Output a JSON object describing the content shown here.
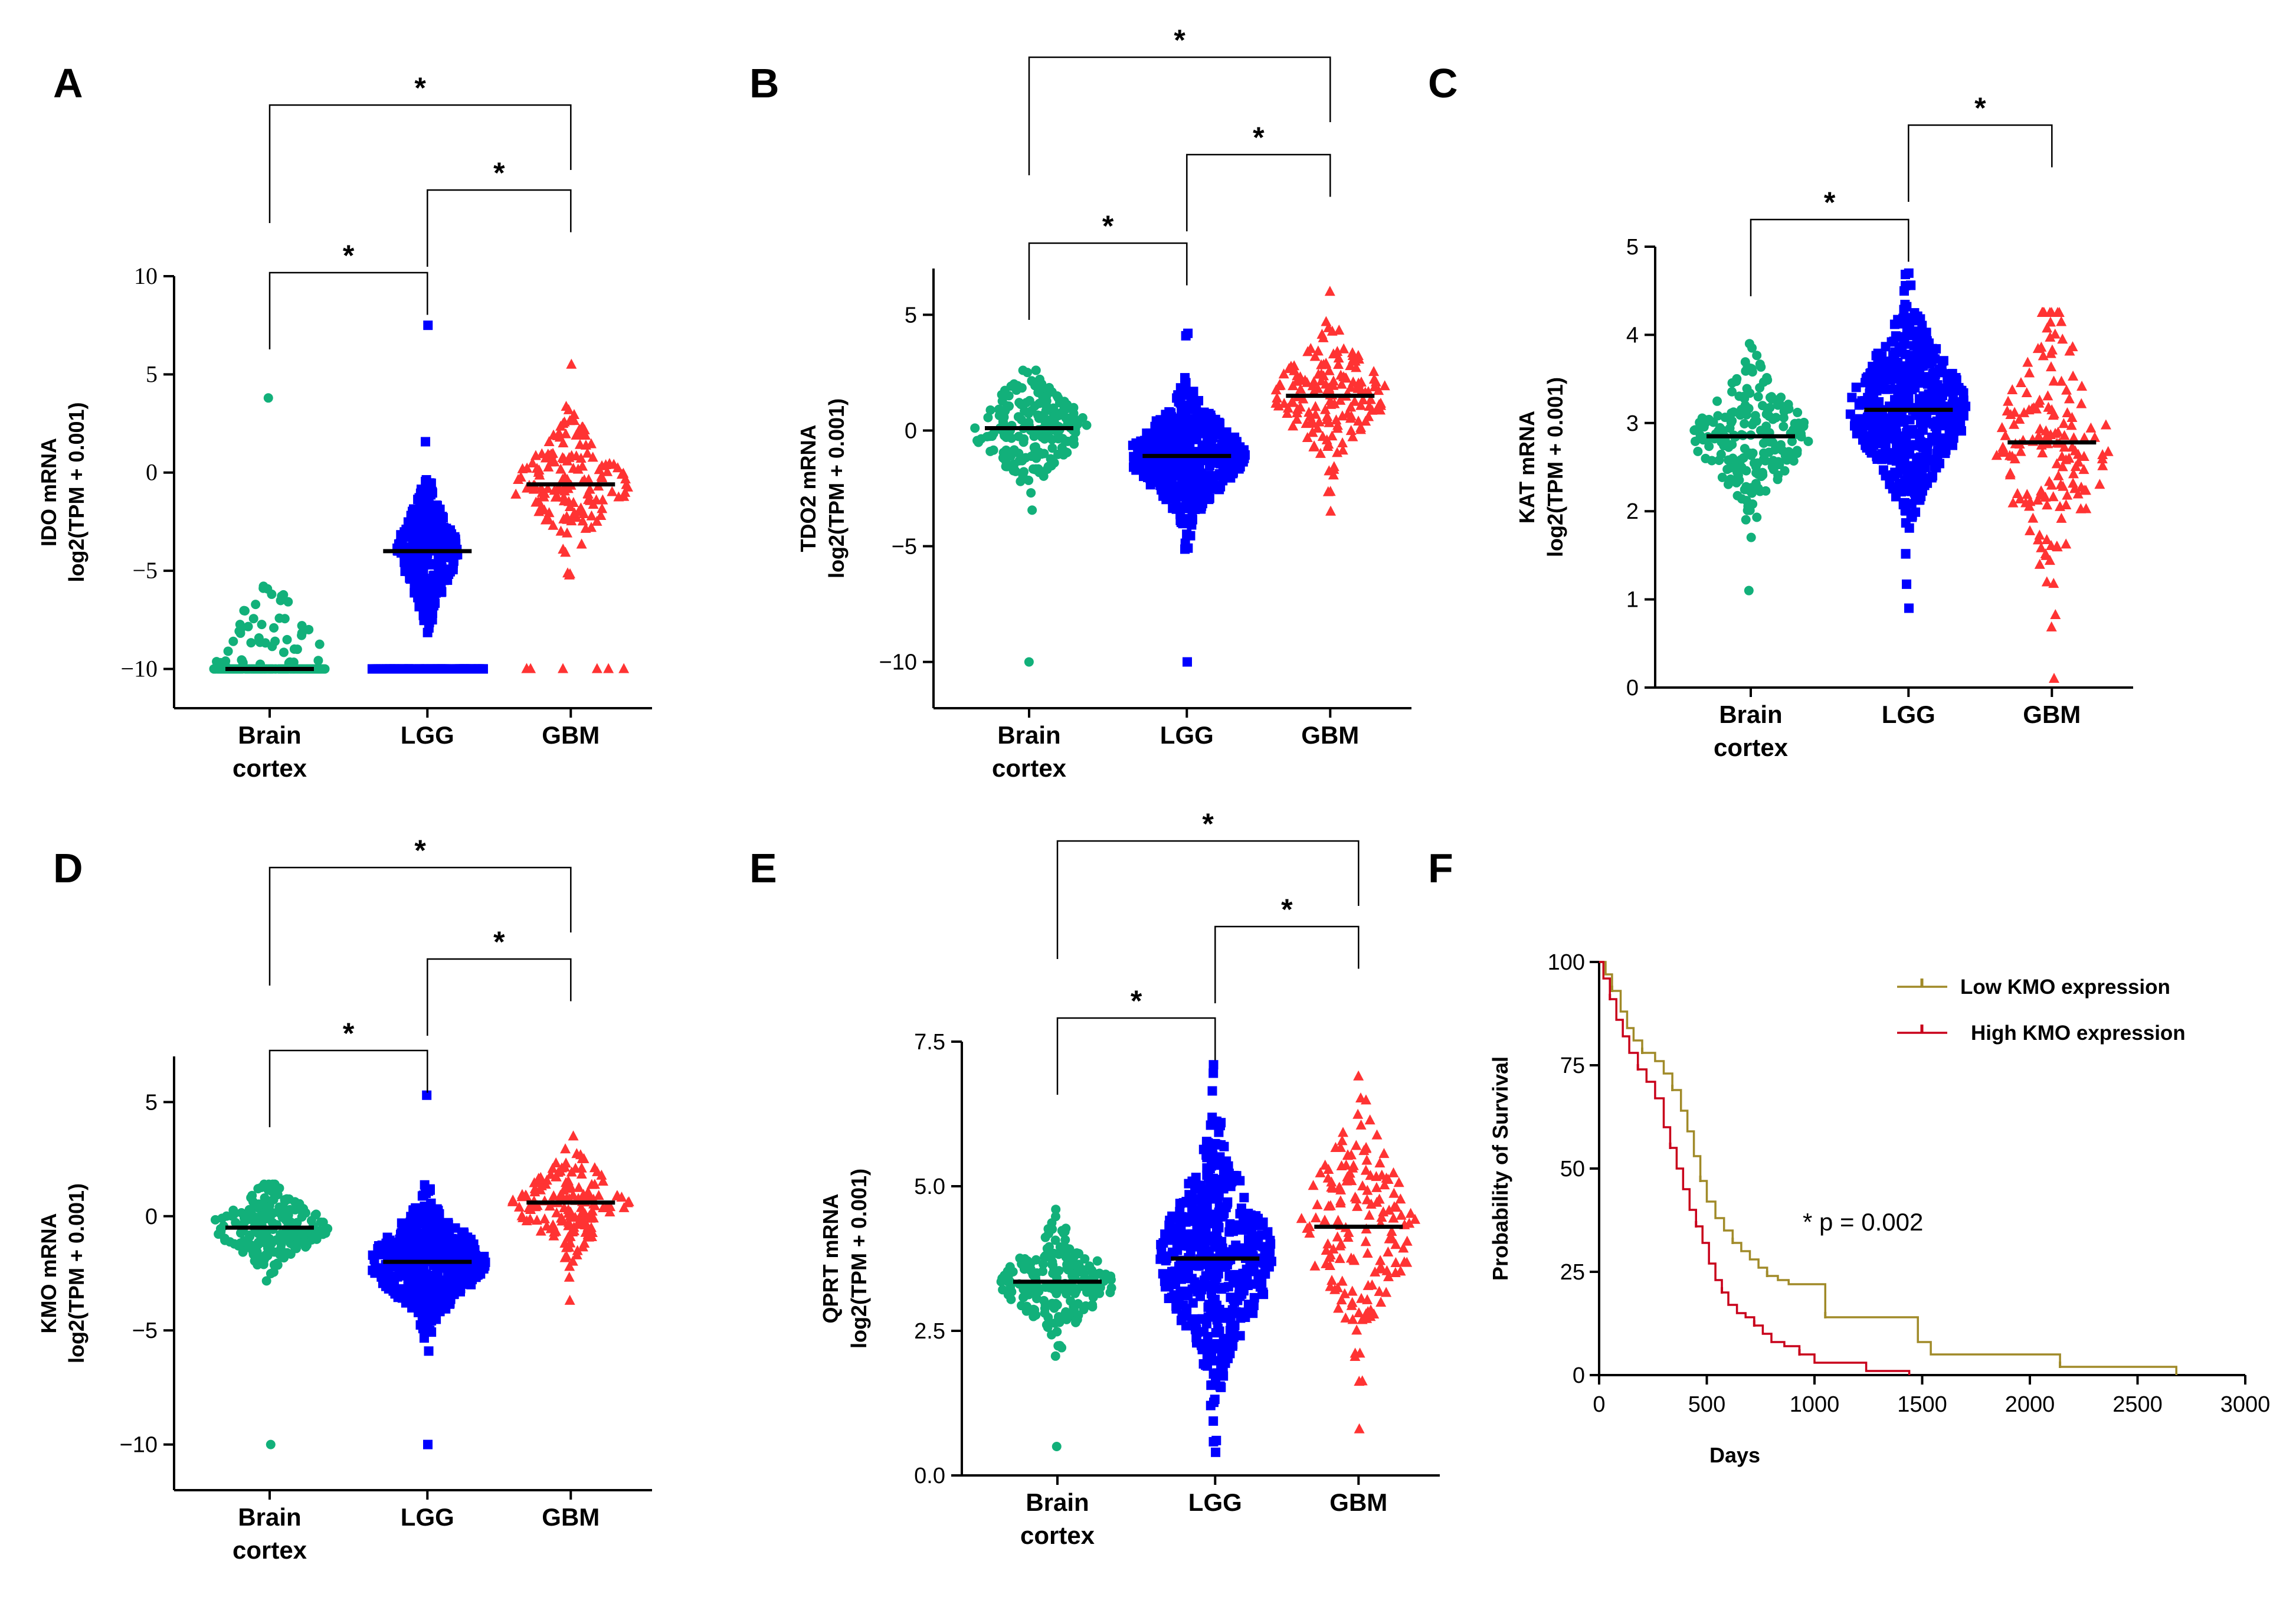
{
  "colors": {
    "brain": "#12b07a",
    "lgg": "#0000ff",
    "gbm": "#ff3333",
    "low": "#a08a28",
    "high": "#c8001a",
    "median": "#000000"
  },
  "chart_data": [
    {
      "panel": "A",
      "type": "scatter",
      "subtype": "dot-strip",
      "ylabel_line1": "IDO mRNA",
      "ylabel_line2": "log2(TPM + 0.001)",
      "ylim": [
        -12,
        10
      ],
      "yticks": [
        10,
        5,
        0,
        -5,
        -10
      ],
      "tick_font": "serif",
      "categories": [
        [
          "Brain",
          "cortex"
        ],
        [
          "LGG"
        ],
        [
          "GBM"
        ]
      ],
      "series": [
        {
          "name": "Brain cortex",
          "marker": "circle",
          "median": -10,
          "min": -10,
          "max": 3.8,
          "n": 200,
          "floor": -10,
          "floor_frac": 0.55,
          "spread": 1.0,
          "sigma": 2.5
        },
        {
          "name": "LGG",
          "marker": "square",
          "median": -4,
          "min": -10,
          "max": 7.5,
          "n": 520,
          "floor": -10,
          "floor_frac": 0.32,
          "spread": 0.5,
          "sigma": 1.6
        },
        {
          "name": "GBM",
          "marker": "triangle",
          "median": -0.6,
          "min": -10,
          "max": 5.5,
          "n": 160,
          "floor": -10,
          "floor_frac": 0.04,
          "spread": 1.0,
          "sigma": 1.6
        }
      ],
      "brackets": [
        {
          "from": 0,
          "to": 1,
          "label": "*"
        },
        {
          "from": 1,
          "to": 2,
          "label": "*"
        },
        {
          "from": 0,
          "to": 2,
          "label": "*"
        }
      ]
    },
    {
      "panel": "B",
      "type": "scatter",
      "subtype": "dot-strip",
      "ylabel_line1": "TDO2 mRNA",
      "ylabel_line2": "log2(TPM + 0.001)",
      "ylim": [
        -12,
        7
      ],
      "yticks": [
        5,
        0,
        -5,
        -10
      ],
      "tick_font": "sans",
      "categories": [
        [
          "Brain",
          "cortex"
        ],
        [
          "LGG"
        ],
        [
          "GBM"
        ]
      ],
      "series": [
        {
          "name": "Brain cortex",
          "marker": "circle",
          "median": 0.1,
          "min": -10,
          "max": 2.6,
          "n": 200,
          "floor": null,
          "floor_frac": 0,
          "spread": 1.0,
          "sigma": 1.2
        },
        {
          "name": "LGG",
          "marker": "square",
          "median": -1.1,
          "min": -10,
          "max": 4.2,
          "n": 520,
          "floor": null,
          "floor_frac": 0,
          "spread": 1.0,
          "sigma": 1.3
        },
        {
          "name": "GBM",
          "marker": "triangle",
          "median": 1.5,
          "min": -3.5,
          "max": 6.0,
          "n": 160,
          "floor": null,
          "floor_frac": 0,
          "spread": 1.0,
          "sigma": 1.4
        }
      ],
      "brackets": [
        {
          "from": 0,
          "to": 1,
          "label": "*"
        },
        {
          "from": 1,
          "to": 2,
          "label": "*"
        },
        {
          "from": 0,
          "to": 2,
          "label": "*"
        }
      ]
    },
    {
      "panel": "C",
      "type": "scatter",
      "subtype": "dot-strip",
      "ylabel_line1": "KAT mRNA",
      "ylabel_line2": "log2(TPM + 0.001)",
      "ylim": [
        0,
        5
      ],
      "yticks": [
        5,
        4,
        3,
        2,
        1,
        0
      ],
      "tick_font": "sans",
      "categories": [
        [
          "Brain",
          "cortex"
        ],
        [
          "LGG"
        ],
        [
          "GBM"
        ]
      ],
      "series": [
        {
          "name": "Brain cortex",
          "marker": "circle",
          "median": 2.85,
          "min": 1.1,
          "max": 3.9,
          "n": 200,
          "floor": null,
          "floor_frac": 0,
          "spread": 1.0,
          "sigma": 0.4
        },
        {
          "name": "LGG",
          "marker": "square",
          "median": 3.15,
          "min": 0.9,
          "max": 4.7,
          "n": 520,
          "floor": null,
          "floor_frac": 0,
          "spread": 1.0,
          "sigma": 0.55
        },
        {
          "name": "GBM",
          "marker": "triangle",
          "median": 2.78,
          "min": 0.1,
          "max": 4.25,
          "n": 160,
          "floor": null,
          "floor_frac": 0,
          "spread": 1.0,
          "sigma": 0.75
        }
      ],
      "brackets": [
        {
          "from": 0,
          "to": 1,
          "label": "*"
        },
        {
          "from": 1,
          "to": 2,
          "label": "*"
        }
      ]
    },
    {
      "panel": "D",
      "type": "scatter",
      "subtype": "dot-strip",
      "ylabel_line1": "KMO mRNA",
      "ylabel_line2": "log2(TPM + 0.001)",
      "ylim": [
        -12,
        7
      ],
      "yticks": [
        5,
        0,
        -5,
        -10
      ],
      "tick_font": "sans",
      "categories": [
        [
          "Brain",
          "cortex"
        ],
        [
          "LGG"
        ],
        [
          "GBM"
        ]
      ],
      "series": [
        {
          "name": "Brain cortex",
          "marker": "circle",
          "median": -0.5,
          "min": -10,
          "max": 1.4,
          "n": 200,
          "floor": null,
          "floor_frac": 0,
          "spread": 1.0,
          "sigma": 0.9
        },
        {
          "name": "LGG",
          "marker": "square",
          "median": -2.0,
          "min": -10,
          "max": 5.3,
          "n": 520,
          "floor": null,
          "floor_frac": 0,
          "spread": 1.0,
          "sigma": 1.3
        },
        {
          "name": "GBM",
          "marker": "triangle",
          "median": 0.6,
          "min": -3.7,
          "max": 3.5,
          "n": 160,
          "floor": null,
          "floor_frac": 0,
          "spread": 1.0,
          "sigma": 1.1
        }
      ],
      "brackets": [
        {
          "from": 0,
          "to": 1,
          "label": "*"
        },
        {
          "from": 1,
          "to": 2,
          "label": "*"
        },
        {
          "from": 0,
          "to": 2,
          "label": "*"
        }
      ]
    },
    {
      "panel": "E",
      "type": "scatter",
      "subtype": "dot-strip",
      "ylabel_line1": "QPRT mRNA",
      "ylabel_line2": "log2(TPM + 0.001)",
      "ylim": [
        0,
        7.5
      ],
      "yticks": [
        "7.5",
        "5.0",
        "2.5",
        "0.0"
      ],
      "tick_font": "sans",
      "categories": [
        [
          "Brain",
          "cortex"
        ],
        [
          "LGG"
        ],
        [
          "GBM"
        ]
      ],
      "series": [
        {
          "name": "Brain cortex",
          "marker": "circle",
          "median": 3.35,
          "min": 0.5,
          "max": 4.6,
          "n": 200,
          "floor": null,
          "floor_frac": 0,
          "spread": 1.0,
          "sigma": 0.45
        },
        {
          "name": "LGG",
          "marker": "square",
          "median": 3.75,
          "min": 0.4,
          "max": 7.1,
          "n": 520,
          "floor": null,
          "floor_frac": 0,
          "spread": 1.0,
          "sigma": 1.0
        },
        {
          "name": "GBM",
          "marker": "triangle",
          "median": 4.3,
          "min": 0.8,
          "max": 6.9,
          "n": 160,
          "floor": null,
          "floor_frac": 0,
          "spread": 1.0,
          "sigma": 1.0
        }
      ],
      "brackets": [
        {
          "from": 0,
          "to": 1,
          "label": "*"
        },
        {
          "from": 1,
          "to": 2,
          "label": "*"
        },
        {
          "from": 0,
          "to": 2,
          "label": "*"
        }
      ]
    },
    {
      "panel": "F",
      "type": "line",
      "subtype": "kaplan-meier",
      "xlabel": "Days",
      "ylabel": "Probability of Survival",
      "xlim": [
        0,
        3000
      ],
      "ylim": [
        0,
        100
      ],
      "xticks": [
        0,
        500,
        1000,
        1500,
        2000,
        2500,
        3000
      ],
      "yticks": [
        100,
        75,
        50,
        25,
        0
      ],
      "annotation": "* p = 0.002",
      "series": [
        {
          "name": "Low KMO expression",
          "color_key": "low",
          "x": [
            0,
            30,
            60,
            100,
            130,
            160,
            200,
            230,
            260,
            300,
            340,
            380,
            410,
            440,
            470,
            500,
            540,
            580,
            620,
            660,
            700,
            740,
            780,
            830,
            880,
            950,
            1050,
            1440,
            1480,
            1540,
            2140,
            2680
          ],
          "y": [
            100,
            97,
            93,
            88,
            84,
            81,
            78,
            78,
            76,
            73,
            69,
            64,
            59,
            53,
            47,
            42,
            38,
            35,
            32,
            30,
            28,
            26,
            24,
            23,
            22,
            22,
            14,
            14,
            8,
            5,
            2,
            0
          ]
        },
        {
          "name": "High KMO expression",
          "color_key": "high",
          "x": [
            0,
            20,
            50,
            80,
            110,
            140,
            180,
            220,
            260,
            300,
            330,
            360,
            390,
            420,
            450,
            480,
            510,
            540,
            570,
            600,
            640,
            680,
            720,
            760,
            800,
            860,
            930,
            1000,
            1240,
            1440
          ],
          "y": [
            100,
            96,
            91,
            86,
            82,
            78,
            74,
            71,
            67,
            60,
            55,
            50,
            45,
            40,
            36,
            32,
            27,
            23,
            20,
            17,
            15,
            14,
            12,
            10,
            8,
            7,
            5,
            3,
            1,
            0
          ]
        }
      ]
    }
  ]
}
